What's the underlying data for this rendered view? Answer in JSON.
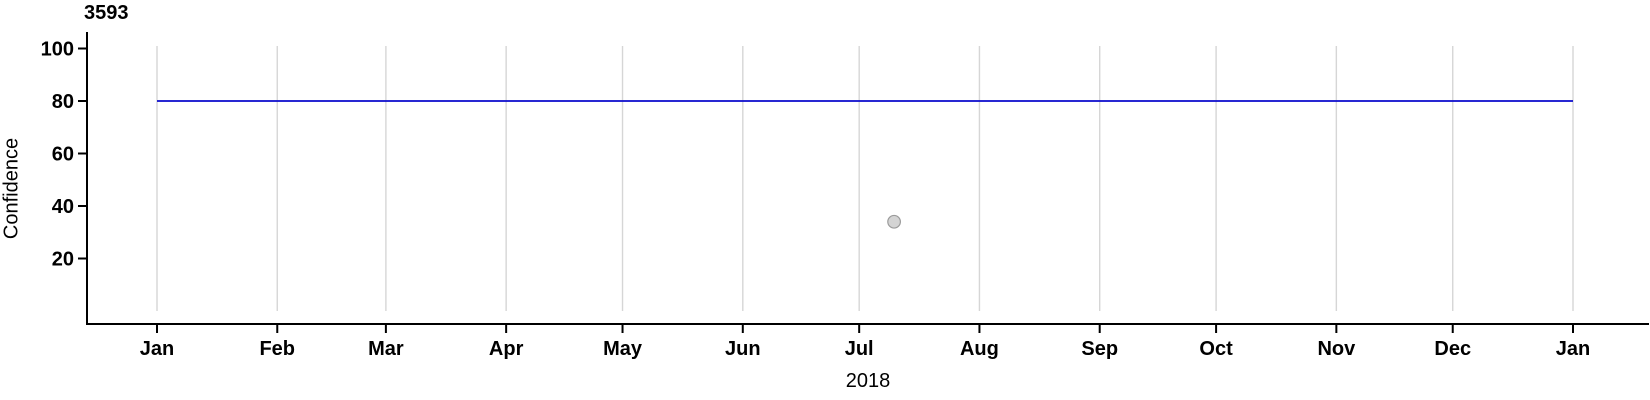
{
  "chart_data": {
    "type": "scatter",
    "title": "3593",
    "ylabel": "Confidence",
    "xlabel": "2018",
    "x_axis": {
      "kind": "time",
      "span_days": 365,
      "tick_labels": [
        "Jan",
        "Feb",
        "Mar",
        "Apr",
        "May",
        "Jun",
        "Jul",
        "Aug",
        "Sep",
        "Oct",
        "Nov",
        "Dec",
        "Jan"
      ],
      "tick_day_offsets": [
        0,
        31,
        59,
        90,
        120,
        151,
        181,
        212,
        243,
        273,
        304,
        334,
        365
      ],
      "grid": true
    },
    "y_axis": {
      "tick_values": [
        20,
        40,
        60,
        80,
        100
      ],
      "ylim": [
        0,
        101
      ],
      "grid": false
    },
    "reference_line": {
      "y": 80,
      "x_start_day": 0,
      "x_end_day": 365,
      "color": "#0a0acc"
    },
    "points": [
      {
        "x_day_of_year": 190,
        "x_approx_date": "2018-07-09",
        "y": 34,
        "fill": "#d4d4d4",
        "stroke": "#9b9b9b"
      }
    ],
    "colors": {
      "axis": "#000000",
      "gridline": "#d6d6d6",
      "text": "#000000",
      "background": "#ffffff"
    },
    "legend": "none"
  }
}
